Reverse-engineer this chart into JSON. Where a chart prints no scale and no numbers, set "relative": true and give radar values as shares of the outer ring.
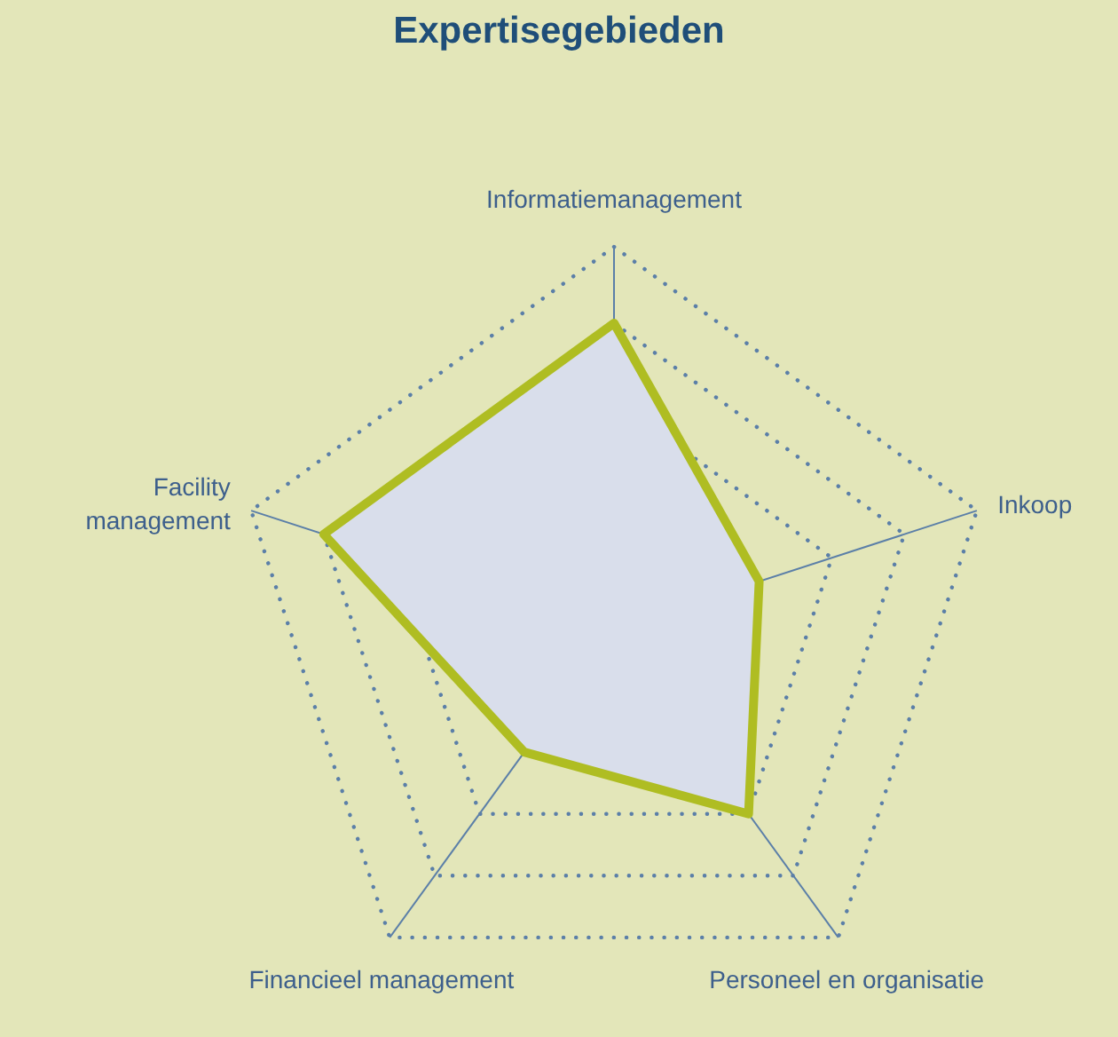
{
  "chart_data": {
    "type": "radar",
    "title": "Expertisegebieden",
    "relative": true,
    "grid": true,
    "categories": [
      "Informatiemanagement",
      "Inkoop",
      "Personeel en organisatie",
      "Financieel management",
      "Facility management"
    ],
    "series": [
      {
        "color": "#afbd22",
        "values": [
          0.8,
          0.4,
          0.6,
          0.4,
          0.8
        ]
      }
    ]
  }
}
